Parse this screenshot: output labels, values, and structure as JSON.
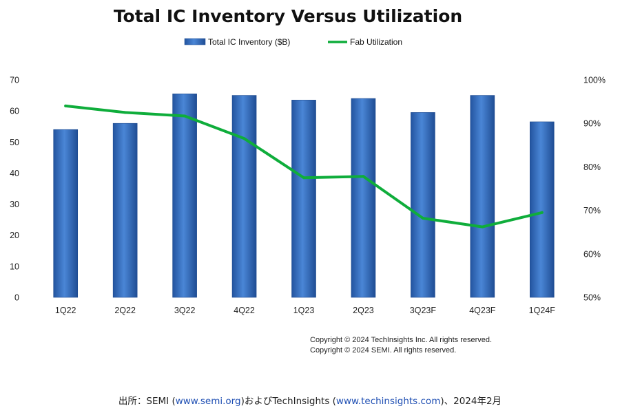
{
  "chart_data": {
    "type": "bar",
    "title": "Total IC Inventory Versus Utilization",
    "categories": [
      "1Q22",
      "2Q22",
      "3Q22",
      "4Q22",
      "1Q23",
      "2Q23",
      "3Q23F",
      "4Q23F",
      "1Q24F"
    ],
    "series": [
      {
        "name": "Total IC Inventory ($B)",
        "type": "bar",
        "axis": "left",
        "color": "#3a72c4",
        "values": [
          54,
          56,
          65.5,
          65,
          63.5,
          64,
          59.5,
          65,
          56.5
        ]
      },
      {
        "name": "Fab Utilization",
        "type": "line",
        "axis": "right",
        "color": "#0fad3b",
        "values": [
          0.94,
          0.925,
          0.917,
          0.865,
          0.775,
          0.778,
          0.682,
          0.662,
          0.695
        ]
      }
    ],
    "y_left": {
      "ylim": [
        0,
        70
      ],
      "ticks": [
        "0",
        "10",
        "20",
        "30",
        "40",
        "50",
        "60",
        "70"
      ]
    },
    "y_right": {
      "ylim": [
        0.5,
        1.0
      ],
      "ticks": [
        "50%",
        "60%",
        "70%",
        "80%",
        "90%",
        "100%"
      ]
    },
    "legend": {
      "placement": "top-center"
    },
    "grid": false
  },
  "copyright": [
    "Copyright © 2024 TechInsights Inc.  All rights reserved.",
    "Copyright © 2024 SEMI.  All rights reserved."
  ],
  "source": {
    "prefix": "出所：SEMI (",
    "link1": "www.semi.org",
    "middle": ")およびTechInsights (",
    "link2": "www.techinsights.com",
    "suffix": ")、2024年2月"
  }
}
